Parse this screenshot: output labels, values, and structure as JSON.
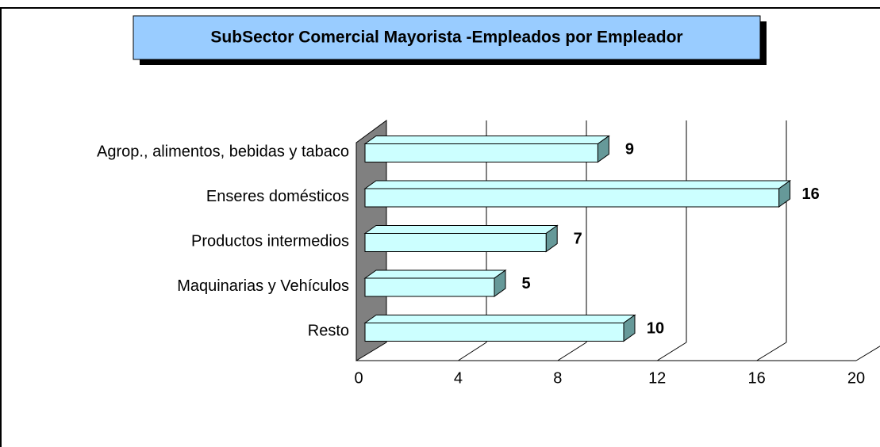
{
  "chart_data": {
    "type": "bar",
    "orientation": "horizontal",
    "title": "SubSector Comercial Mayorista -Empleados por Empleador",
    "categories": [
      "Agrop., alimentos, bebidas y tabaco",
      "Enseres domésticos",
      "Productos intermedios",
      "Maquinarias y Vehículos",
      "Resto"
    ],
    "values": [
      9,
      16,
      7,
      5,
      10
    ],
    "color": "#ccffff",
    "xlim": [
      0,
      20
    ],
    "xticks": [
      0,
      4,
      8,
      12,
      16,
      20
    ],
    "grid": true
  }
}
